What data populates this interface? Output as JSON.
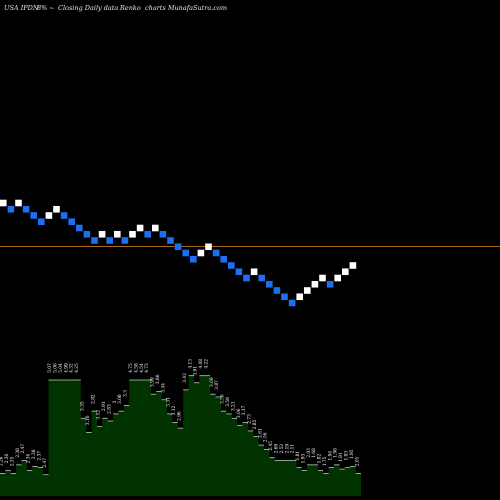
{
  "header": {
    "ticker": "USA IPDN",
    "change": "8%",
    "change_symbol": "~",
    "description": "Closing Daily data",
    "chart_kind": "Renko",
    "credit": "charts MunafaSutra.com"
  },
  "colors": {
    "up_brick": "#ffffff",
    "down_brick": "#1e6ff0",
    "reference_line": "#a66a1a",
    "volume_fill": "#003300",
    "volume_edge": "#ffffff",
    "background": "#000000"
  },
  "chart_data": [
    {
      "type": "renko",
      "directions": [
        "up",
        "down",
        "up",
        "down",
        "down",
        "down",
        "up",
        "up",
        "down",
        "down",
        "down",
        "down",
        "down",
        "up",
        "down",
        "up",
        "down",
        "up",
        "up",
        "down",
        "up",
        "down",
        "down",
        "down",
        "down",
        "down",
        "up",
        "up",
        "down",
        "down",
        "down",
        "down",
        "down",
        "up",
        "down",
        "down",
        "down",
        "down",
        "down",
        "up",
        "up",
        "up",
        "up",
        "down",
        "up",
        "up",
        "up"
      ],
      "reference_level": 33.8
    },
    {
      "type": "bar",
      "volume_labels": [
        "2.26",
        "2.36",
        "2.35",
        "2.38",
        "2.47",
        "2.36",
        "2.38",
        "2.37",
        "2.47",
        "5.07",
        "5.06",
        "5.04",
        "4.99",
        "4.32",
        "4.25",
        "3.35",
        "3.16",
        "2.82",
        "3.12",
        "2.91",
        "2.83",
        "3",
        "3.08",
        "3.3",
        "4.75",
        "4.58",
        "4.54",
        "4.73",
        "3.99",
        "3.86",
        "3.44",
        "3.31",
        "3.12",
        "2.96",
        "3.43",
        "4.13",
        "3.91",
        "4.08",
        "4.22",
        "3.69",
        "3.87",
        "3.56",
        "3.58",
        "3.21",
        "3.06",
        "3.17",
        "2.73",
        "2.85",
        "2.61",
        "2.56",
        "2.45",
        "2.69",
        "2.52",
        "2.19",
        "2.11",
        "1.81",
        "1.93",
        "2.03",
        "1.68",
        "1.82",
        "1.75",
        "1.94",
        "1.98",
        "1.91",
        "1.93",
        "1.95",
        "2.01"
      ],
      "values": [
        16,
        18,
        16,
        22,
        25,
        18,
        21,
        20,
        15,
        82,
        82,
        82,
        82,
        82,
        82,
        55,
        45,
        60,
        49,
        55,
        53,
        58,
        60,
        64,
        82,
        82,
        82,
        82,
        72,
        74,
        68,
        58,
        52,
        48,
        75,
        85,
        80,
        85,
        85,
        72,
        70,
        60,
        58,
        55,
        50,
        52,
        46,
        42,
        36,
        33,
        27,
        25,
        25,
        25,
        25,
        20,
        18,
        22,
        22,
        18,
        16,
        20,
        22,
        19,
        20,
        21,
        16
      ]
    }
  ]
}
